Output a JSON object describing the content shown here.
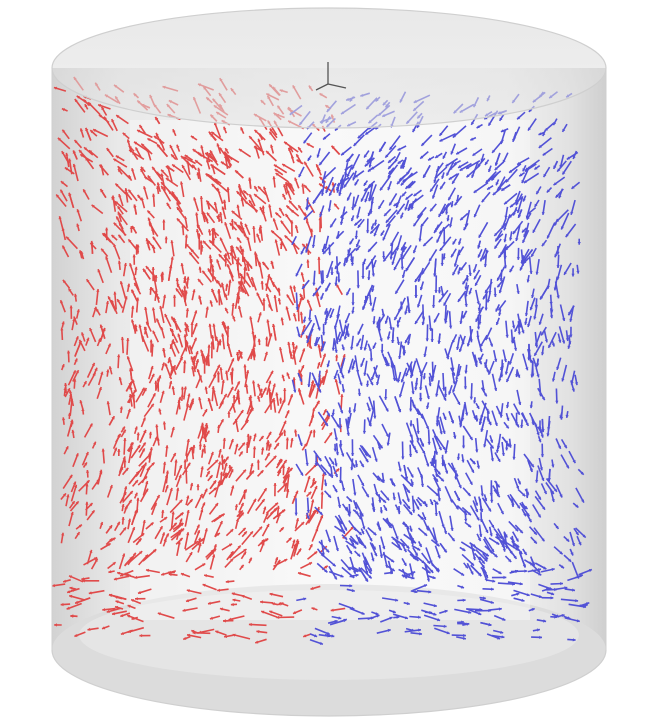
{
  "scene": {
    "subject": "cylinder-flow-vector-field",
    "colors": {
      "background": "#ffffff",
      "cylinder_body": "#e4e4e4",
      "cylinder_edge": "#cfcfcf",
      "cylinder_top": "#d8d8d8",
      "cylinder_highlight": "#f7f7f7",
      "arrow_upward": "#e04a4a",
      "arrow_downward": "#5252d6",
      "axis": "#555555"
    },
    "arrow_groups": [
      {
        "name": "upward-flow-arrows",
        "color": "#e04a4a",
        "region": "left-half",
        "direction": "up"
      },
      {
        "name": "downward-flow-arrows",
        "color": "#5252d6",
        "region": "right-half",
        "direction": "down"
      }
    ],
    "axis_icon": "xyz-axis-triad-icon"
  }
}
